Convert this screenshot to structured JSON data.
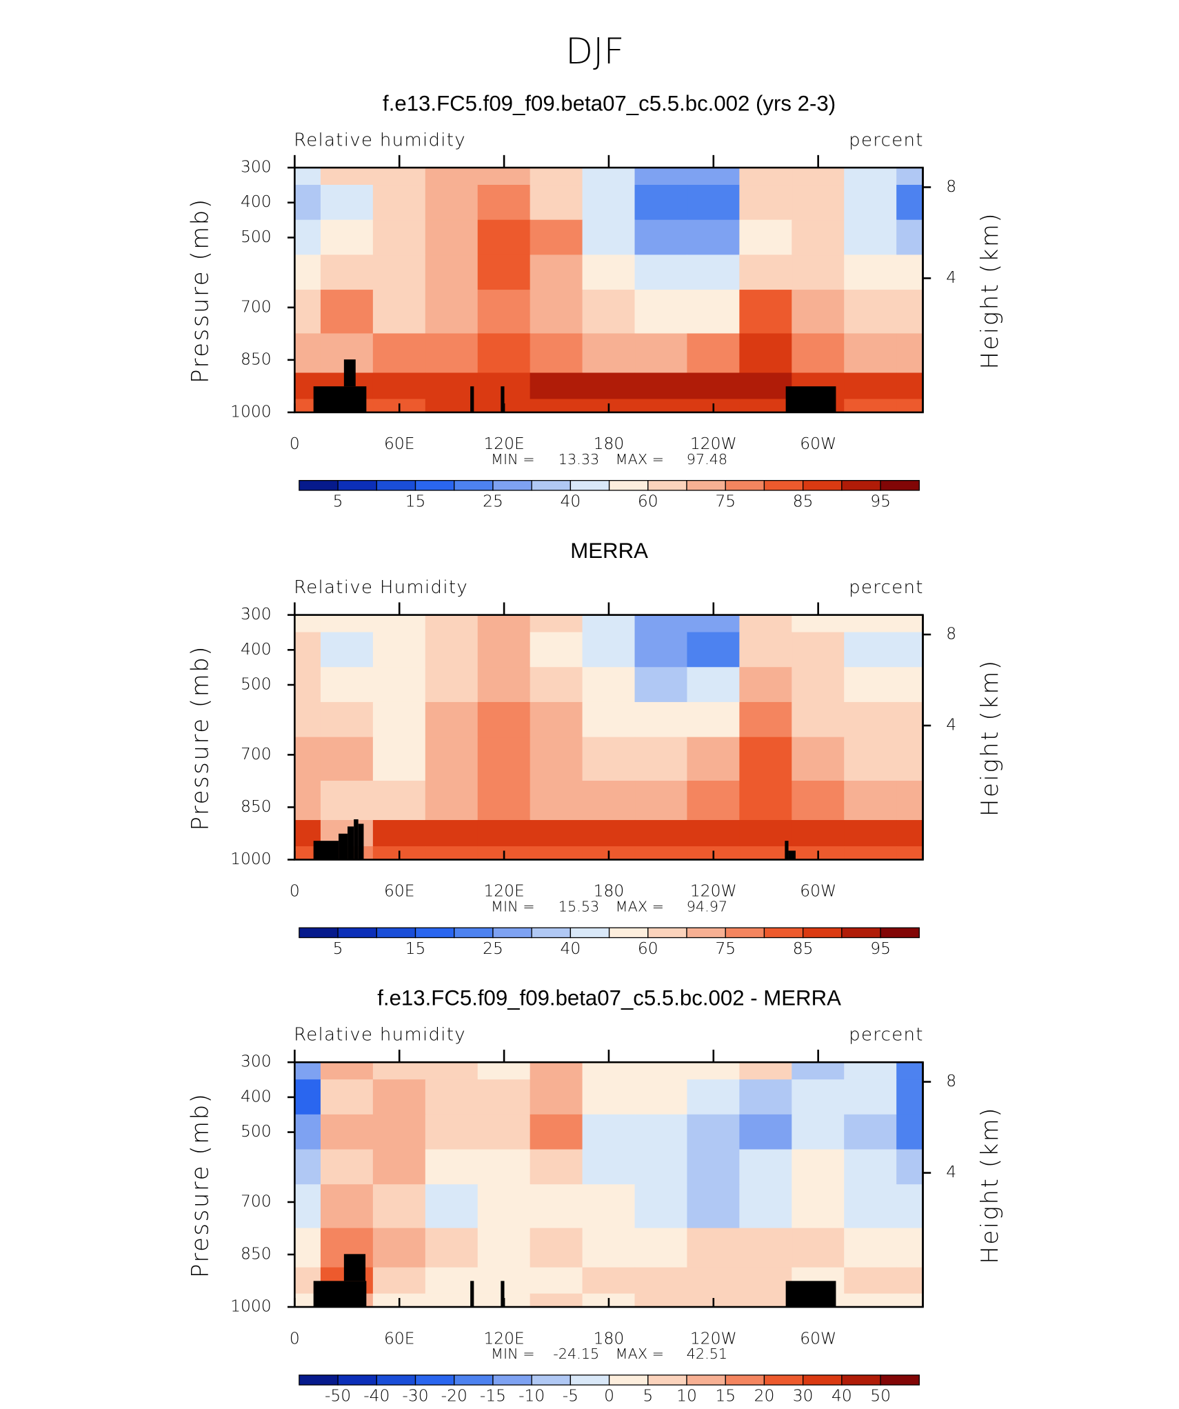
{
  "title": "DJF",
  "chart_data": [
    {
      "type": "contour",
      "title": "f.e13.FC5.f09_f09.beta07_c5.5.bc.002 (yrs 2-3)",
      "left_label": "Relative humidity",
      "right_label": "percent",
      "ylabel": "Pressure (mb)",
      "y2label": "Height (km)",
      "x": [
        0,
        30,
        60,
        90,
        120,
        150,
        180,
        210,
        240,
        270,
        300,
        330,
        360
      ],
      "levels": [
        300,
        400,
        500,
        600,
        700,
        850,
        925,
        1000
      ],
      "values": [
        [
          40,
          60,
          60,
          70,
          70,
          60,
          45,
          30,
          30,
          65,
          62,
          45,
          35
        ],
        [
          35,
          45,
          60,
          70,
          78,
          60,
          40,
          22,
          20,
          60,
          60,
          40,
          22
        ],
        [
          45,
          55,
          62,
          72,
          82,
          75,
          45,
          30,
          25,
          55,
          60,
          45,
          35
        ],
        [
          55,
          62,
          62,
          70,
          80,
          72,
          55,
          45,
          40,
          62,
          62,
          55,
          55
        ],
        [
          62,
          78,
          62,
          70,
          78,
          70,
          62,
          55,
          58,
          80,
          70,
          62,
          62
        ],
        [
          72,
          72,
          75,
          78,
          80,
          78,
          72,
          70,
          75,
          85,
          78,
          72,
          72
        ],
        [
          88,
          85,
          88,
          88,
          88,
          90,
          90,
          92,
          90,
          90,
          88,
          88,
          88
        ],
        [
          80,
          80,
          82,
          85,
          85,
          85,
          85,
          85,
          88,
          85,
          85,
          80,
          80
        ]
      ],
      "xlim": [
        0,
        360
      ],
      "xticks": [
        0,
        {
          "value": 60,
          "label": "60E"
        },
        {
          "value": 120,
          "label": "120E"
        },
        180,
        {
          "value": 240,
          "label": "120W"
        },
        {
          "value": 300,
          "label": "60W"
        }
      ],
      "ylim": [
        1000,
        300
      ],
      "yticks": [
        300,
        400,
        500,
        700,
        850,
        1000
      ],
      "y2lim": [
        0.11,
        9.16
      ],
      "y2ticks": [
        4,
        8
      ],
      "min_label": "MIN =",
      "min": 13.33,
      "max_label": "MAX =",
      "max": 97.48,
      "colorbar": {
        "ticks": [
          5,
          15,
          25,
          40,
          60,
          75,
          85,
          95
        ],
        "tick_stride": 2,
        "colors": [
          "#061a8c",
          "#0c2fb8",
          "#1a4ed8",
          "#2a66ef",
          "#4d82f0",
          "#7ea2f2",
          "#b0c8f4",
          "#d9e8f8",
          "#fdeedd",
          "#fbd3bc",
          "#f7b093",
          "#f4855f",
          "#ed5a2d",
          "#da3a12",
          "#b01c08",
          "#820606"
        ]
      }
    },
    {
      "type": "contour",
      "title": "MERRA",
      "left_label": "Relative Humidity",
      "right_label": "percent",
      "ylabel": "Pressure (mb)",
      "y2label": "Height (km)",
      "x": [
        0,
        30,
        60,
        90,
        120,
        150,
        180,
        210,
        240,
        270,
        300,
        330,
        360
      ],
      "levels": [
        300,
        400,
        500,
        600,
        700,
        850,
        925,
        1000
      ],
      "values": [
        [
          55,
          55,
          55,
          60,
          70,
          60,
          45,
          30,
          30,
          60,
          55,
          50,
          55
        ],
        [
          60,
          40,
          50,
          62,
          70,
          58,
          40,
          25,
          22,
          65,
          60,
          45,
          40
        ],
        [
          62,
          50,
          50,
          65,
          70,
          62,
          50,
          35,
          40,
          70,
          60,
          55,
          55
        ],
        [
          65,
          60,
          55,
          68,
          75,
          68,
          55,
          50,
          55,
          75,
          62,
          60,
          60
        ],
        [
          68,
          70,
          58,
          68,
          78,
          70,
          62,
          62,
          68,
          80,
          70,
          65,
          65
        ],
        [
          72,
          60,
          65,
          72,
          75,
          72,
          72,
          72,
          75,
          82,
          75,
          72,
          72
        ],
        [
          85,
          70,
          88,
          88,
          88,
          88,
          88,
          88,
          88,
          85,
          88,
          88,
          85
        ],
        [
          80,
          75,
          82,
          82,
          82,
          82,
          82,
          82,
          82,
          80,
          82,
          80,
          80
        ]
      ],
      "xlim": [
        0,
        360
      ],
      "xticks": [
        0,
        {
          "value": 60,
          "label": "60E"
        },
        {
          "value": 120,
          "label": "120E"
        },
        180,
        {
          "value": 240,
          "label": "120W"
        },
        {
          "value": 300,
          "label": "60W"
        }
      ],
      "ylim": [
        1000,
        300
      ],
      "yticks": [
        300,
        400,
        500,
        700,
        850,
        1000
      ],
      "y2lim": [
        0.11,
        9.16
      ],
      "y2ticks": [
        4,
        8
      ],
      "min_label": "MIN =",
      "min": 15.53,
      "max_label": "MAX =",
      "max": 94.97,
      "colorbar": {
        "ticks": [
          5,
          15,
          25,
          40,
          60,
          75,
          85,
          95
        ],
        "tick_stride": 2,
        "colors": [
          "#061a8c",
          "#0c2fb8",
          "#1a4ed8",
          "#2a66ef",
          "#4d82f0",
          "#7ea2f2",
          "#b0c8f4",
          "#d9e8f8",
          "#fdeedd",
          "#fbd3bc",
          "#f7b093",
          "#f4855f",
          "#ed5a2d",
          "#da3a12",
          "#b01c08",
          "#820606"
        ]
      }
    },
    {
      "type": "contour",
      "title": "f.e13.FC5.f09_f09.beta07_c5.5.bc.002 - MERRA",
      "left_label": "Relative humidity",
      "right_label": "percent",
      "ylabel": "Pressure (mb)",
      "y2label": "Height (km)",
      "x": [
        0,
        30,
        60,
        90,
        120,
        150,
        180,
        210,
        240,
        270,
        300,
        330,
        360
      ],
      "levels": [
        300,
        400,
        500,
        600,
        700,
        850,
        925,
        1000
      ],
      "values": [
        [
          -15,
          10,
          5,
          5,
          0,
          10,
          0,
          0,
          0,
          5,
          -10,
          -5,
          -20
        ],
        [
          -25,
          5,
          10,
          5,
          5,
          10,
          0,
          0,
          -5,
          -10,
          -5,
          -5,
          -18
        ],
        [
          -15,
          10,
          10,
          5,
          5,
          15,
          -5,
          -5,
          -10,
          -15,
          -5,
          -10,
          -20
        ],
        [
          -10,
          5,
          10,
          0,
          0,
          5,
          -5,
          -5,
          -10,
          -5,
          0,
          -5,
          -10
        ],
        [
          -5,
          10,
          5,
          -5,
          0,
          0,
          0,
          -5,
          -10,
          -5,
          0,
          -5,
          -5
        ],
        [
          0,
          15,
          10,
          5,
          0,
          5,
          0,
          0,
          5,
          5,
          5,
          0,
          0
        ],
        [
          5,
          20,
          5,
          0,
          0,
          0,
          5,
          5,
          5,
          5,
          0,
          5,
          5
        ],
        [
          0,
          10,
          0,
          0,
          0,
          5,
          0,
          5,
          5,
          5,
          0,
          0,
          0
        ]
      ],
      "xlim": [
        0,
        360
      ],
      "xticks": [
        0,
        {
          "value": 60,
          "label": "60E"
        },
        {
          "value": 120,
          "label": "120E"
        },
        180,
        {
          "value": 240,
          "label": "120W"
        },
        {
          "value": 300,
          "label": "60W"
        }
      ],
      "ylim": [
        1000,
        300
      ],
      "yticks": [
        300,
        400,
        500,
        700,
        850,
        1000
      ],
      "y2lim": [
        0.11,
        9.16
      ],
      "y2ticks": [
        4,
        8
      ],
      "min_label": "MIN =",
      "min": -24.15,
      "max_label": "MAX =",
      "max": 42.51,
      "colorbar": {
        "ticks": [
          -50,
          -40,
          -30,
          -20,
          -15,
          -10,
          -5,
          0,
          5,
          10,
          15,
          20,
          30,
          40,
          50
        ],
        "tick_stride": 1,
        "colors": [
          "#061a8c",
          "#0c2fb8",
          "#1a4ed8",
          "#2a66ef",
          "#4d82f0",
          "#7ea2f2",
          "#b0c8f4",
          "#d9e8f8",
          "#fdeedd",
          "#fbd3bc",
          "#f7b093",
          "#f4855f",
          "#ed5a2d",
          "#da3a12",
          "#b01c08",
          "#820606"
        ]
      }
    }
  ]
}
